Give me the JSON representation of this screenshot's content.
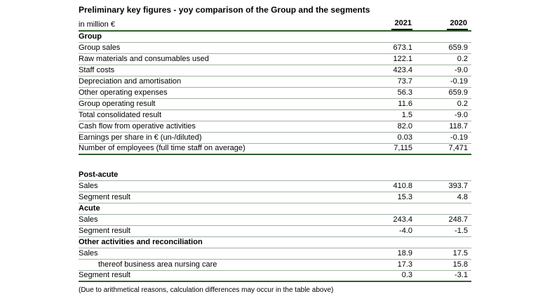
{
  "page": {
    "title": "Preliminary key figures - yoy comparison of the Group and the segments",
    "footnote": "(Due to arithmetical reasons, calculation differences may occur in the table above)"
  },
  "table": {
    "unit_label": "in million €",
    "year_columns": [
      "2021",
      "2020"
    ],
    "sections": [
      {
        "name": "Group",
        "rows": [
          {
            "label": "Group sales",
            "y2021": "673.1",
            "y2020": "659.9"
          },
          {
            "label": "Raw materials and consumables used",
            "y2021": "122.1",
            "y2020": "0.2"
          },
          {
            "label": "Staff costs",
            "y2021": "423.4",
            "y2020": "-9.0"
          },
          {
            "label": "Depreciation and amortisation",
            "y2021": "73.7",
            "y2020": "-0.19"
          },
          {
            "label": "Other operating expenses",
            "y2021": "56.3",
            "y2020": "659.9"
          },
          {
            "label": "Group operating result",
            "y2021": "11.6",
            "y2020": "0.2"
          },
          {
            "label": "Total consolidated result",
            "y2021": "1.5",
            "y2020": "-9.0"
          },
          {
            "label": "Cash flow from operative activities",
            "y2021": "82.0",
            "y2020": "118.7"
          },
          {
            "label": "Earnings per share in € (un-/diluted)",
            "y2021": "0.03",
            "y2020": "-0.19"
          },
          {
            "label": "Number of employees (full time staff on average)",
            "y2021": "7,115",
            "y2020": "7,471"
          }
        ]
      },
      {
        "name": "Post-acute",
        "rows": [
          {
            "label": "Sales",
            "y2021": "410.8",
            "y2020": "393.7"
          },
          {
            "label": "Segment result",
            "y2021": "15.3",
            "y2020": "4.8"
          }
        ]
      },
      {
        "name": "Acute",
        "rows": [
          {
            "label": "Sales",
            "y2021": "243.4",
            "y2020": "248.7"
          },
          {
            "label": "Segment result",
            "y2021": "-4.0",
            "y2020": "-1.5"
          }
        ]
      },
      {
        "name": "Other activities and reconciliation",
        "rows": [
          {
            "label": "Sales",
            "y2021": "18.9",
            "y2020": "17.5"
          },
          {
            "label": "thereof business area nursing care",
            "y2021": "17.3",
            "y2020": "15.8",
            "indent": true
          },
          {
            "label": "Segment result",
            "y2021": "0.3",
            "y2020": "-3.1"
          }
        ]
      }
    ]
  },
  "colors": {
    "accent_line": "#2f5f2f",
    "separator": "#a3b2a3",
    "year_underline": "#000000",
    "text": "#000000"
  }
}
